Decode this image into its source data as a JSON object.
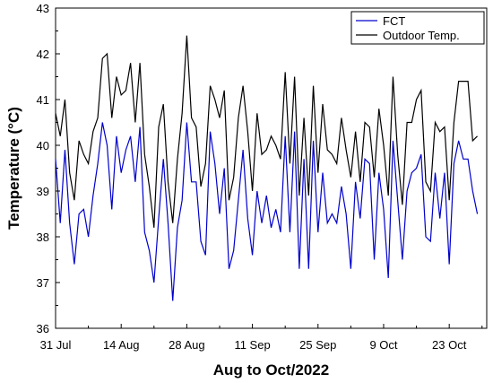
{
  "chart_data": {
    "type": "line",
    "xlabel": "Aug to Oct/2022",
    "ylabel": "Temperature (°C)",
    "ylim": [
      36,
      43
    ],
    "yticks": [
      36,
      37,
      38,
      39,
      40,
      41,
      42,
      43
    ],
    "xlim": [
      0,
      92
    ],
    "xticks": [
      {
        "x": 0,
        "label": "31 Jul"
      },
      {
        "x": 14,
        "label": "14 Aug"
      },
      {
        "x": 28,
        "label": "28 Aug"
      },
      {
        "x": 42,
        "label": "11 Sep"
      },
      {
        "x": 56,
        "label": "25 Sep"
      },
      {
        "x": 70,
        "label": "9 Oct"
      },
      {
        "x": 84,
        "label": "23 Oct"
      }
    ],
    "legend_position": "top-right",
    "grid": false,
    "series": [
      {
        "name": "FCT",
        "color": "#0000cc",
        "values": [
          39.7,
          38.3,
          39.9,
          38.3,
          37.4,
          38.5,
          38.6,
          38.0,
          38.9,
          39.6,
          40.5,
          40.0,
          38.6,
          40.2,
          39.4,
          39.9,
          40.2,
          39.2,
          40.4,
          38.1,
          37.7,
          37.0,
          38.4,
          39.7,
          38.3,
          36.6,
          38.2,
          38.8,
          40.5,
          39.2,
          39.2,
          37.9,
          37.6,
          40.3,
          39.6,
          38.5,
          39.5,
          37.3,
          37.7,
          38.8,
          39.9,
          38.4,
          37.6,
          39.0,
          38.3,
          38.9,
          38.2,
          38.6,
          38.1,
          40.2,
          38.1,
          40.3,
          37.3,
          39.7,
          37.3,
          40.1,
          38.1,
          39.4,
          38.3,
          38.5,
          38.3,
          39.1,
          38.5,
          37.3,
          39.2,
          38.4,
          39.7,
          39.6,
          37.5,
          39.4,
          38.6,
          37.1,
          40.1,
          38.8,
          37.5,
          39.0,
          39.4,
          39.5,
          39.8,
          38.0,
          37.9,
          39.4,
          38.4,
          39.4,
          37.4,
          39.6,
          40.1,
          39.7,
          39.7,
          39.0,
          38.5
        ]
      },
      {
        "name": "Outdoor Temp.",
        "color": "#000000",
        "values": [
          40.7,
          40.2,
          41.0,
          39.4,
          38.8,
          40.1,
          39.8,
          39.6,
          40.3,
          40.6,
          41.9,
          42.0,
          40.6,
          41.5,
          41.1,
          41.2,
          41.8,
          40.5,
          41.8,
          39.8,
          39.1,
          38.2,
          40.4,
          40.9,
          39.2,
          38.3,
          39.7,
          40.7,
          42.4,
          40.6,
          40.4,
          39.1,
          39.6,
          41.3,
          41.0,
          40.6,
          41.2,
          38.8,
          39.3,
          40.6,
          41.3,
          40.3,
          39.0,
          40.7,
          39.8,
          39.9,
          40.2,
          40.0,
          39.7,
          41.6,
          39.6,
          41.5,
          38.9,
          40.6,
          38.9,
          41.3,
          39.4,
          40.9,
          39.9,
          39.8,
          39.6,
          40.6,
          39.9,
          39.3,
          40.3,
          39.2,
          40.5,
          40.4,
          39.3,
          40.8,
          40.0,
          38.9,
          41.5,
          39.8,
          38.7,
          40.5,
          40.5,
          41.0,
          41.2,
          39.2,
          39.0,
          40.5,
          40.3,
          40.4,
          38.8,
          40.5,
          41.4,
          41.4,
          41.4,
          40.1,
          40.2
        ]
      }
    ]
  }
}
